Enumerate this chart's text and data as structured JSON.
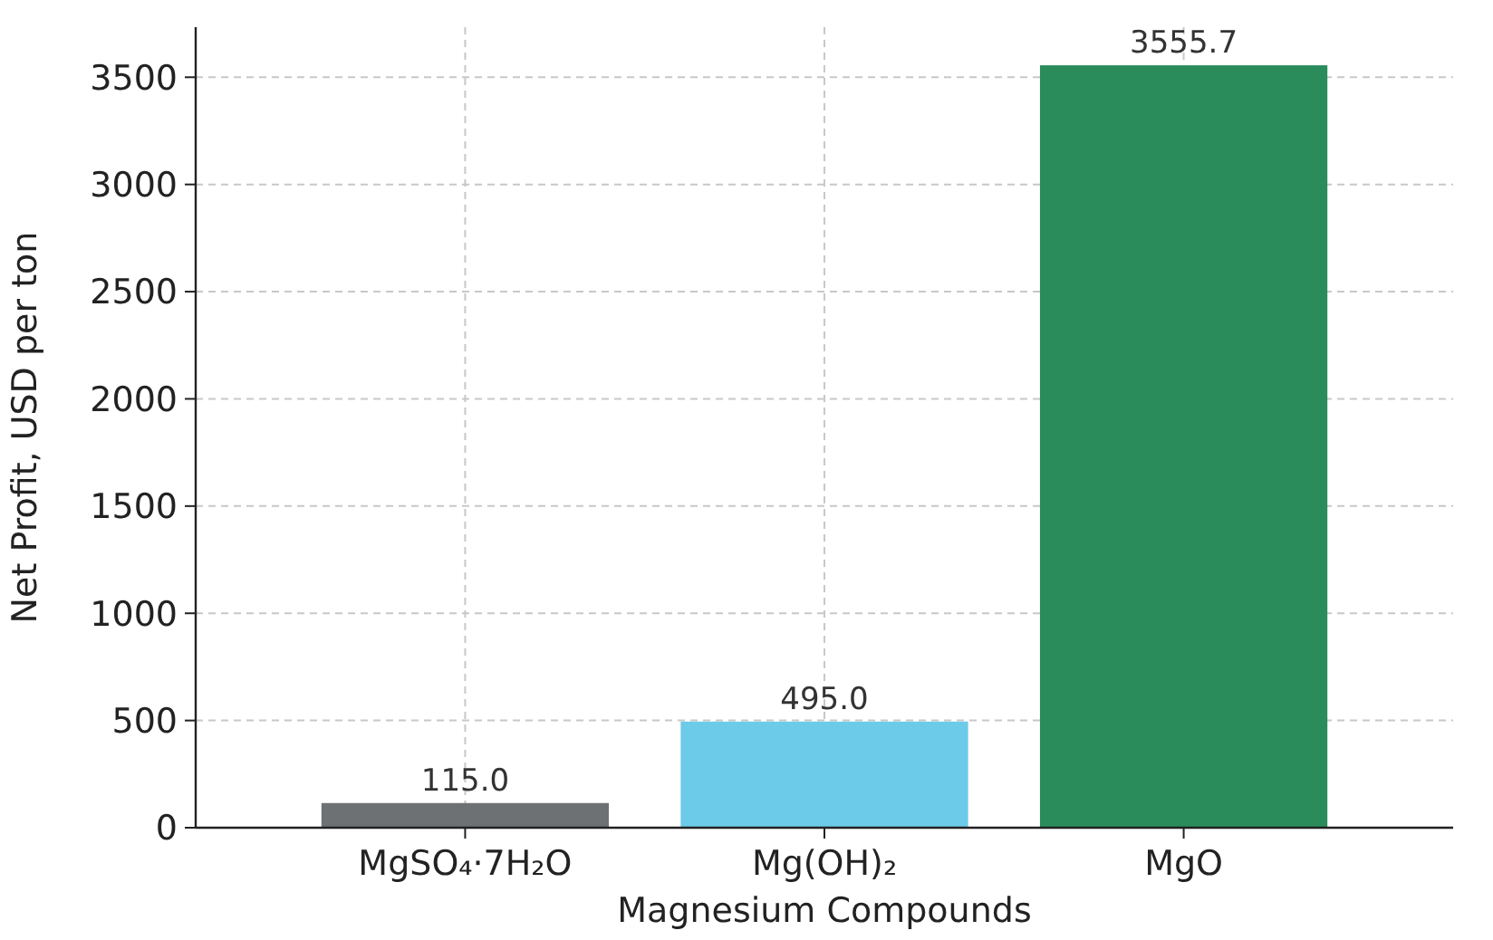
{
  "chart_data": {
    "type": "bar",
    "xlabel": "Magnesium Compounds",
    "ylabel": "Net Profit, USD per ton",
    "categories": [
      "MgSO₄·7H₂O",
      "Mg(OH)₂",
      "MgO"
    ],
    "values": [
      115.0,
      495.0,
      3555.7
    ],
    "colors": [
      "#6e7173",
      "#6ccbe9",
      "#2a8c5b"
    ],
    "value_labels": [
      "115.0",
      "495.0",
      "3555.7"
    ],
    "ylim": [
      0,
      3733.5
    ],
    "yticks": [
      0,
      500,
      1000,
      1500,
      2000,
      2500,
      3000,
      3500
    ],
    "grid": true
  }
}
